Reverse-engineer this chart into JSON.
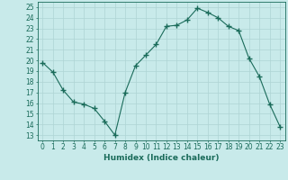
{
  "x": [
    0,
    1,
    2,
    3,
    4,
    5,
    6,
    7,
    8,
    9,
    10,
    11,
    12,
    13,
    14,
    15,
    16,
    17,
    18,
    19,
    20,
    21,
    22,
    23
  ],
  "y": [
    19.8,
    18.9,
    17.2,
    16.1,
    15.9,
    15.5,
    14.3,
    13.0,
    17.0,
    19.5,
    20.5,
    21.5,
    23.2,
    23.3,
    23.8,
    24.9,
    24.5,
    24.0,
    23.2,
    22.8,
    20.2,
    18.5,
    15.9,
    13.8
  ],
  "line_color": "#1a6b5a",
  "marker": "+",
  "marker_size": 4,
  "bg_color": "#c8eaea",
  "grid_color": "#aed4d4",
  "xlabel": "Humidex (Indice chaleur)",
  "ylabel_ticks": [
    13,
    14,
    15,
    16,
    17,
    18,
    19,
    20,
    21,
    22,
    23,
    24,
    25
  ],
  "xlim": [
    -0.5,
    23.5
  ],
  "ylim": [
    12.5,
    25.5
  ],
  "xticks": [
    0,
    1,
    2,
    3,
    4,
    5,
    6,
    7,
    8,
    9,
    10,
    11,
    12,
    13,
    14,
    15,
    16,
    17,
    18,
    19,
    20,
    21,
    22,
    23
  ],
  "axis_color": "#1a6b5a",
  "label_fontsize": 6.5,
  "tick_fontsize": 5.5,
  "linewidth": 0.8
}
